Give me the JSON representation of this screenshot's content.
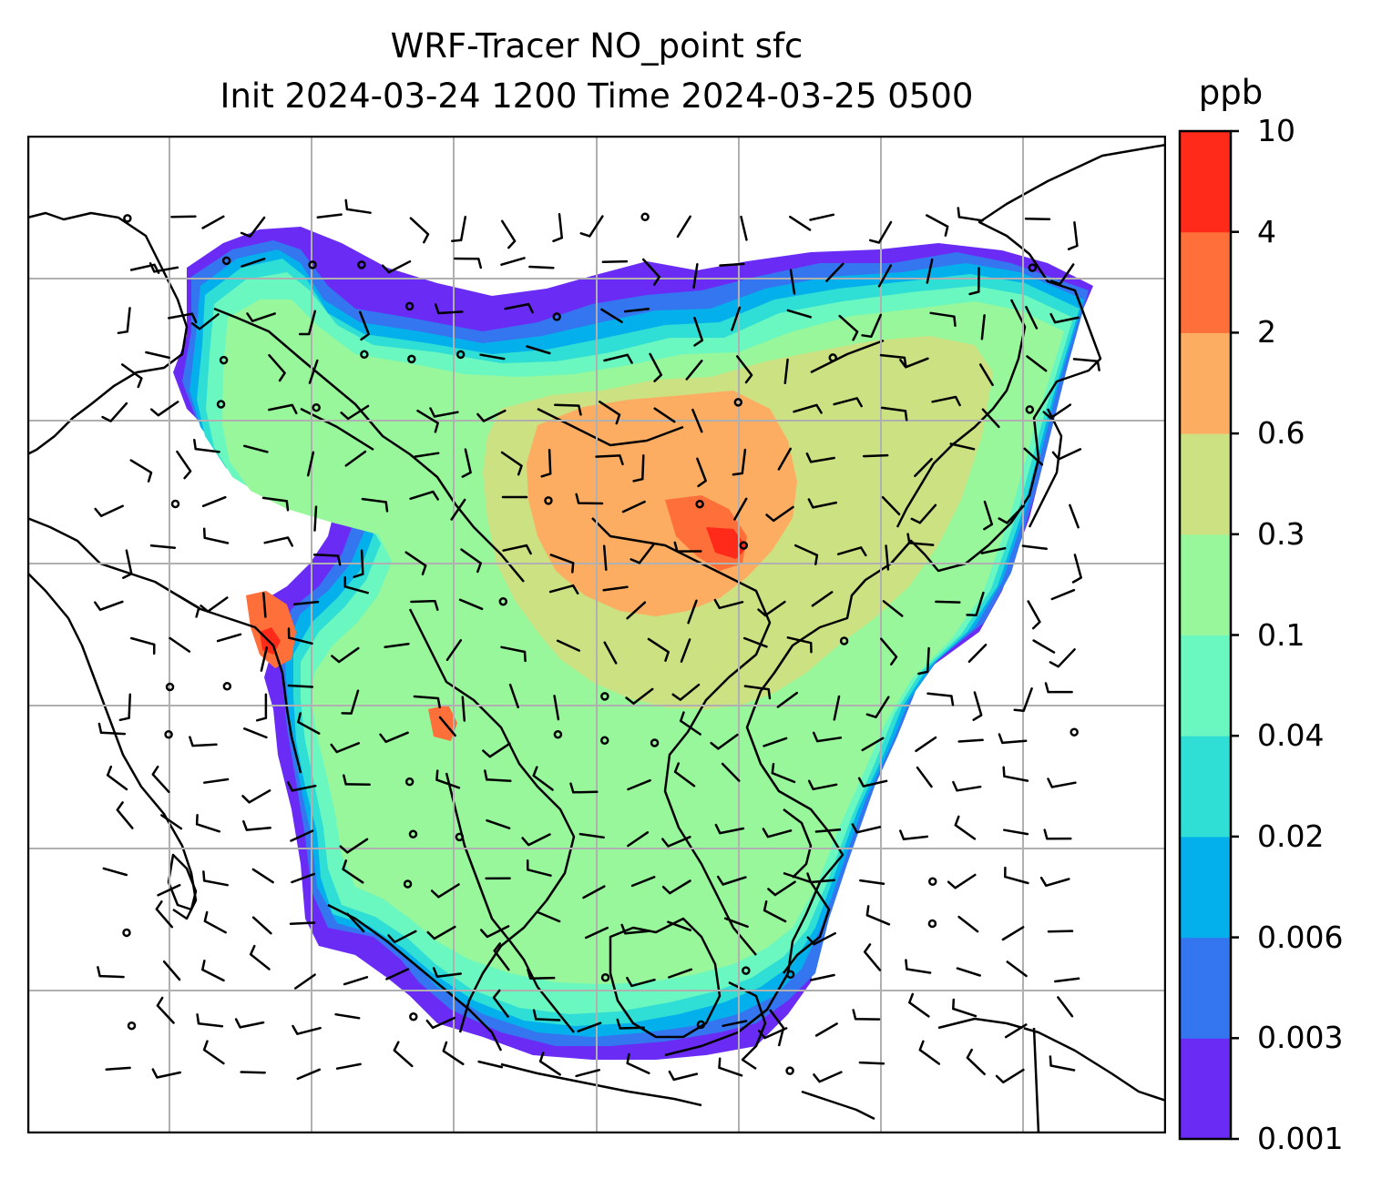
{
  "title": {
    "line1": "WRF-Tracer NO_point sfc",
    "line2": "Init 2024-03-24 1200 Time 2024-03-25 0500"
  },
  "colorbar": {
    "unit": "ppb",
    "levels": [
      "0.001",
      "0.003",
      "0.006",
      "0.02",
      "0.04",
      "0.1",
      "0.3",
      "0.6",
      "2",
      "4",
      "10"
    ],
    "colors": [
      "#6a2cf5",
      "#3476f0",
      "#04b0eb",
      "#2fded4",
      "#6bf7c0",
      "#97f79a",
      "#cbe182",
      "#fdad62",
      "#ff6f39",
      "#ff2a19"
    ]
  },
  "map": {
    "projection": "regional lat-lon (Asia-Pacific)",
    "coastline_color": "#000000",
    "gridlines": true,
    "gridline_color": "#b0b0b0",
    "wind_barbs": true,
    "no_data_color": "#ffffff"
  }
}
